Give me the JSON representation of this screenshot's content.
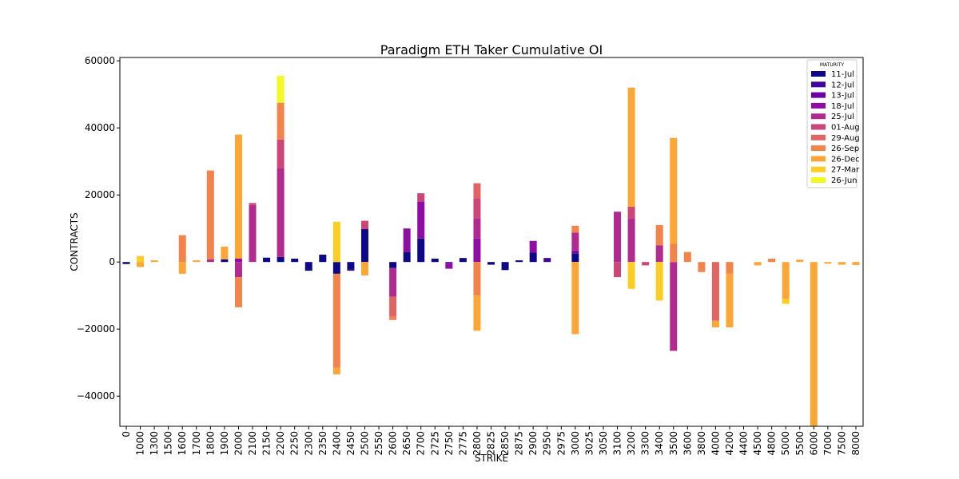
{
  "chart_data": {
    "type": "bar",
    "stacked": true,
    "title": "Paradigm ETH Taker Cumulative OI",
    "xlabel": "STRIKE",
    "ylabel": "CONTRACTS",
    "ylim": [
      -49000,
      61000
    ],
    "yticks": [
      -40000,
      -20000,
      0,
      20000,
      40000,
      60000
    ],
    "ytick_labels": [
      "−40000",
      "−20000",
      "0",
      "20000",
      "40000",
      "60000"
    ],
    "grid": false,
    "legend_position": "top-right",
    "legend_title": "MATURITY",
    "categories": [
      "0",
      "1000",
      "1300",
      "1500",
      "1600",
      "1700",
      "1800",
      "1900",
      "2000",
      "2100",
      "2150",
      "2200",
      "2250",
      "2300",
      "2350",
      "2400",
      "2450",
      "2500",
      "2550",
      "2600",
      "2650",
      "2700",
      "2725",
      "2750",
      "2775",
      "2800",
      "2825",
      "2850",
      "2875",
      "2900",
      "2950",
      "2975",
      "3000",
      "3025",
      "3050",
      "3100",
      "3200",
      "3300",
      "3400",
      "3500",
      "3600",
      "3800",
      "4000",
      "4200",
      "4400",
      "4500",
      "4800",
      "5000",
      "5500",
      "6000",
      "7000",
      "7500",
      "8000"
    ],
    "series": [
      {
        "name": "11-Jul",
        "color": "#0d0887",
        "values": [
          -600,
          0,
          0,
          0,
          0,
          0,
          0,
          800,
          0,
          0,
          1300,
          1500,
          1000,
          -2600,
          2200,
          -3500,
          -2200,
          9800,
          0,
          -1800,
          3000,
          7000,
          1000,
          0,
          1200,
          0,
          -800,
          -2400,
          500,
          2800,
          0,
          0,
          2500,
          0,
          0,
          0,
          0,
          0,
          0,
          0,
          0,
          0,
          0,
          0,
          0,
          0,
          0,
          0,
          0,
          0,
          0,
          0,
          0
        ]
      },
      {
        "name": "12-Jul",
        "color": "#41049d",
        "values": [
          0,
          0,
          0,
          0,
          0,
          0,
          0,
          0,
          0,
          0,
          0,
          0,
          0,
          0,
          0,
          0,
          -400,
          0,
          0,
          0,
          0,
          0,
          0,
          0,
          0,
          0,
          0,
          0,
          0,
          0,
          1200,
          0,
          0,
          0,
          0,
          0,
          0,
          0,
          0,
          0,
          0,
          0,
          0,
          0,
          0,
          0,
          0,
          0,
          0,
          0,
          0,
          0,
          0
        ]
      },
      {
        "name": "13-Jul",
        "color": "#6a00a8",
        "values": [
          0,
          0,
          0,
          0,
          0,
          0,
          0,
          0,
          0,
          0,
          0,
          0,
          0,
          0,
          0,
          0,
          0,
          0,
          0,
          0,
          0,
          0,
          0,
          -500,
          0,
          0,
          0,
          0,
          0,
          0,
          0,
          0,
          800,
          0,
          0,
          0,
          0,
          0,
          0,
          0,
          0,
          0,
          0,
          0,
          0,
          0,
          0,
          0,
          0,
          0,
          0,
          0,
          0
        ]
      },
      {
        "name": "18-Jul",
        "color": "#8f0da4",
        "values": [
          0,
          0,
          0,
          0,
          0,
          0,
          0,
          0,
          1000,
          0,
          0,
          0,
          0,
          0,
          0,
          0,
          0,
          0,
          0,
          0,
          7000,
          11000,
          0,
          -1500,
          0,
          7000,
          0,
          0,
          0,
          3500,
          0,
          0,
          0,
          0,
          0,
          0,
          0,
          0,
          0,
          0,
          0,
          0,
          0,
          0,
          0,
          0,
          0,
          0,
          0,
          0,
          0,
          0,
          0
        ]
      },
      {
        "name": "25-Jul",
        "color": "#b12a90",
        "values": [
          0,
          0,
          0,
          0,
          0,
          0,
          800,
          0,
          -4500,
          17000,
          0,
          26500,
          0,
          0,
          0,
          0,
          0,
          0,
          0,
          -8500,
          0,
          0,
          0,
          0,
          0,
          6000,
          0,
          0,
          0,
          0,
          0,
          0,
          5500,
          0,
          0,
          15000,
          13000,
          0,
          5000,
          -26500,
          0,
          0,
          0,
          0,
          0,
          0,
          0,
          0,
          0,
          0,
          0,
          0,
          0
        ]
      },
      {
        "name": "01-Aug",
        "color": "#cc4778",
        "values": [
          0,
          0,
          0,
          0,
          0,
          0,
          0,
          0,
          0,
          600,
          0,
          8500,
          0,
          0,
          0,
          0,
          0,
          2500,
          0,
          0,
          0,
          2500,
          0,
          0,
          0,
          6000,
          0,
          0,
          0,
          0,
          0,
          0,
          0,
          0,
          0,
          -4500,
          3500,
          -1000,
          0,
          0,
          0,
          0,
          0,
          0,
          0,
          0,
          0,
          0,
          0,
          0,
          0,
          0,
          0
        ]
      },
      {
        "name": "29-Aug",
        "color": "#e16462",
        "values": [
          0,
          0,
          0,
          0,
          0,
          0,
          0,
          0,
          0,
          0,
          0,
          0,
          0,
          0,
          0,
          0,
          0,
          0,
          0,
          -6000,
          0,
          0,
          0,
          0,
          0,
          4500,
          0,
          0,
          0,
          0,
          0,
          0,
          0,
          0,
          0,
          0,
          0,
          0,
          0,
          0,
          0,
          0,
          -17500,
          0,
          0,
          0,
          0,
          0,
          0,
          0,
          0,
          0,
          0
        ]
      },
      {
        "name": "26-Sep",
        "color": "#f2844b",
        "values": [
          0,
          0,
          0,
          0,
          8000,
          0,
          26500,
          0,
          -9000,
          0,
          0,
          11000,
          0,
          0,
          0,
          -28000,
          0,
          0,
          0,
          -1000,
          0,
          0,
          0,
          0,
          0,
          -10000,
          0,
          0,
          0,
          0,
          0,
          0,
          2000,
          0,
          0,
          0,
          0,
          0,
          6000,
          5500,
          3000,
          -3000,
          0,
          -3500,
          0,
          0,
          1000,
          0,
          0,
          0,
          0,
          0,
          0
        ]
      },
      {
        "name": "26-Dec",
        "color": "#fca636",
        "values": [
          0,
          -1500,
          500,
          0,
          -3500,
          500,
          0,
          3800,
          37000,
          0,
          0,
          0,
          0,
          0,
          0,
          -2000,
          0,
          -4000,
          0,
          0,
          0,
          0,
          0,
          0,
          0,
          -10500,
          0,
          0,
          0,
          0,
          0,
          0,
          -21500,
          0,
          0,
          0,
          35500,
          0,
          0,
          31500,
          0,
          0,
          -2000,
          -16000,
          0,
          -1000,
          0,
          -11000,
          700,
          -49000,
          -500,
          -800,
          -900
        ]
      },
      {
        "name": "27-Mar",
        "color": "#fccd25",
        "values": [
          0,
          1800,
          0,
          0,
          0,
          0,
          0,
          0,
          0,
          0,
          0,
          0,
          0,
          0,
          0,
          12000,
          0,
          0,
          0,
          0,
          0,
          0,
          0,
          0,
          0,
          0,
          0,
          0,
          0,
          0,
          0,
          0,
          0,
          0,
          0,
          0,
          -8000,
          0,
          -11500,
          0,
          0,
          0,
          0,
          0,
          0,
          0,
          0,
          -1500,
          0,
          0,
          0,
          0,
          0
        ]
      },
      {
        "name": "26-Jun",
        "color": "#f0f921",
        "values": [
          0,
          0,
          0,
          0,
          0,
          0,
          0,
          0,
          0,
          0,
          0,
          8000,
          0,
          0,
          0,
          0,
          0,
          0,
          0,
          0,
          0,
          0,
          0,
          0,
          0,
          0,
          0,
          0,
          0,
          0,
          0,
          0,
          0,
          0,
          0,
          0,
          0,
          0,
          0,
          0,
          0,
          0,
          0,
          0,
          0,
          0,
          0,
          0,
          0,
          0,
          0,
          0,
          0
        ]
      }
    ]
  }
}
